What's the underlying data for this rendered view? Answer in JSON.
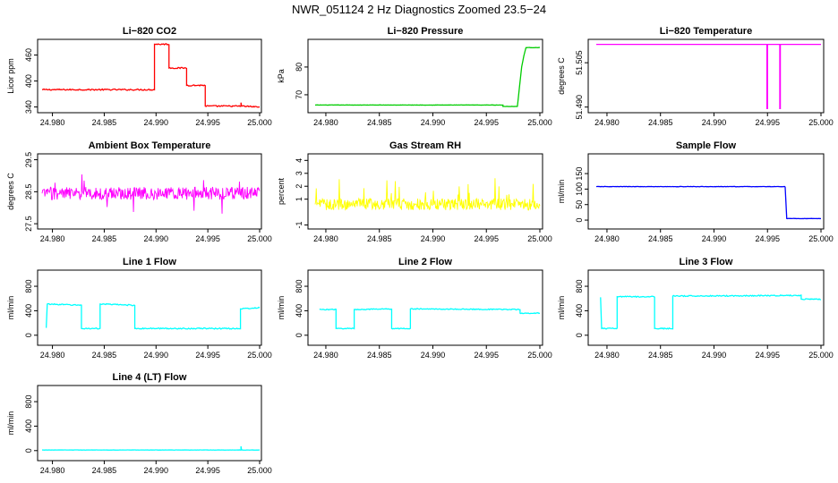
{
  "figure": {
    "suptitle": "NWR_051124  2 Hz Diagnostics Zoomed 23.5−24"
  },
  "chart_data": [
    {
      "type": "line",
      "title": "Li−820 CO2",
      "ylabel": "Licor ppm",
      "color": "#ff0000",
      "xlim": [
        24.979,
        25.0
      ],
      "ylim": [
        333,
        490
      ],
      "xticks": [
        "24.980",
        "24.985",
        "24.990",
        "24.995",
        "25.000"
      ],
      "yticks": [
        340,
        400,
        460
      ],
      "segments": [
        [
          24.979,
          380
        ],
        [
          24.98985,
          380
        ],
        [
          24.98985,
          485
        ],
        [
          24.99125,
          485
        ],
        [
          24.99125,
          430
        ],
        [
          24.99295,
          430
        ],
        [
          24.99295,
          390
        ],
        [
          24.99475,
          390
        ],
        [
          24.99475,
          342
        ],
        [
          24.9982,
          342
        ],
        [
          24.9982,
          350
        ],
        [
          24.99825,
          342
        ],
        [
          25.0,
          340
        ]
      ],
      "noise": 1.5
    },
    {
      "type": "line",
      "title": "Li−820 Pressure",
      "ylabel": "kPa",
      "color": "#00cc00",
      "xlim": [
        24.979,
        25.0
      ],
      "ylim": [
        64.5,
        89
      ],
      "xticks": [
        "24.980",
        "24.985",
        "24.990",
        "24.995",
        "25.000"
      ],
      "yticks": [
        70,
        80
      ],
      "segments": [
        [
          24.979,
          66.3
        ],
        [
          24.99655,
          66.3
        ],
        [
          24.99655,
          65.8
        ],
        [
          24.9979,
          65.8
        ],
        [
          24.9981,
          73
        ],
        [
          24.9983,
          80
        ],
        [
          24.9985,
          84
        ],
        [
          24.9987,
          87
        ],
        [
          25.0,
          87
        ]
      ],
      "noise": 0.05
    },
    {
      "type": "line",
      "title": "Li−820 Temperature",
      "ylabel": "degrees C",
      "color": "#ff00ff",
      "xlim": [
        24.979,
        25.0
      ],
      "ylim": [
        51.489,
        51.512
      ],
      "xticks": [
        "24.980",
        "24.985",
        "24.990",
        "24.995",
        "25.000"
      ],
      "yticks": [
        "51.490",
        "51.505"
      ],
      "segments": [
        [
          24.979,
          51.5112
        ],
        [
          24.99495,
          51.5112
        ],
        [
          24.99495,
          51.4895
        ],
        [
          24.995,
          51.4895
        ],
        [
          24.995,
          51.5112
        ],
        [
          24.99615,
          51.5112
        ],
        [
          24.99615,
          51.4895
        ],
        [
          24.9962,
          51.4895
        ],
        [
          24.9962,
          51.5112
        ],
        [
          24.99085,
          51.5112
        ],
        [
          25.0,
          51.5112
        ]
      ],
      "noise": 0
    },
    {
      "type": "line",
      "title": "Ambient Box Temperature",
      "ylabel": "degrees C",
      "color": "#ff00ff",
      "xlim": [
        24.979,
        25.0
      ],
      "ylim": [
        27.42,
        29.6
      ],
      "xticks": [
        "24.980",
        "24.985",
        "24.990",
        "24.995",
        "25.000"
      ],
      "yticks": [
        "27.5",
        "28.5",
        "29.5"
      ],
      "segments": [
        [
          24.979,
          28.45
        ],
        [
          25.0,
          28.45
        ]
      ],
      "noise": 0.2
    },
    {
      "type": "line",
      "title": "Gas Stream RH",
      "ylabel": "percent",
      "color": "#ffff00",
      "xlim": [
        24.979,
        25.0
      ],
      "ylim": [
        -1.1,
        4.3
      ],
      "xticks": [
        "24.980",
        "24.985",
        "24.990",
        "24.995",
        "25.000"
      ],
      "yticks": [
        -1,
        1,
        2,
        3,
        4
      ],
      "segments": [
        [
          24.979,
          0.6
        ],
        [
          25.0,
          0.6
        ]
      ],
      "noise": 0.45
    },
    {
      "type": "line",
      "title": "Sample Flow",
      "ylabel": "ml/min",
      "color": "#0000ff",
      "xlim": [
        24.979,
        25.0
      ],
      "ylim": [
        -20,
        205
      ],
      "xticks": [
        "24.980",
        "24.985",
        "24.990",
        "24.995",
        "25.000"
      ],
      "yticks": [
        0,
        50,
        100,
        150
      ],
      "segments": [
        [
          24.979,
          108
        ],
        [
          24.99665,
          108
        ],
        [
          24.99665,
          108
        ],
        [
          24.9968,
          5
        ],
        [
          25.0,
          5
        ]
      ],
      "noise": 0.6
    },
    {
      "type": "line",
      "title": "Line 1 Flow",
      "ylabel": "ml/min",
      "color": "#00ffff",
      "xlim": [
        24.979,
        25.0
      ],
      "ylim": [
        -120,
        1020
      ],
      "xticks": [
        "24.980",
        "24.985",
        "24.990",
        "24.995",
        "25.000"
      ],
      "yticks": [
        0,
        400,
        800
      ],
      "segments": [
        [
          24.9794,
          120
        ],
        [
          24.9795,
          510
        ],
        [
          24.9828,
          490
        ],
        [
          24.9828,
          110
        ],
        [
          24.9846,
          110
        ],
        [
          24.9846,
          510
        ],
        [
          24.98795,
          490
        ],
        [
          24.98795,
          110
        ],
        [
          24.99815,
          110
        ],
        [
          24.99815,
          430
        ],
        [
          25.0,
          450
        ]
      ],
      "noise": 9
    },
    {
      "type": "line",
      "title": "Line 2 Flow",
      "ylabel": "ml/min",
      "color": "#00ffff",
      "xlim": [
        24.979,
        25.0
      ],
      "ylim": [
        -120,
        1020
      ],
      "xticks": [
        "24.980",
        "24.985",
        "24.990",
        "24.995",
        "25.000"
      ],
      "yticks": [
        0,
        400,
        800
      ],
      "segments": [
        [
          24.9794,
          420
        ],
        [
          24.98095,
          420
        ],
        [
          24.98095,
          110
        ],
        [
          24.98265,
          110
        ],
        [
          24.98265,
          420
        ],
        [
          24.98615,
          430
        ],
        [
          24.98615,
          110
        ],
        [
          24.9879,
          110
        ],
        [
          24.9879,
          430
        ],
        [
          24.99815,
          420
        ],
        [
          24.99815,
          360
        ],
        [
          25.0,
          360
        ]
      ],
      "noise": 7
    },
    {
      "type": "line",
      "title": "Line 3 Flow",
      "ylabel": "ml/min",
      "color": "#00ffff",
      "xlim": [
        24.979,
        25.0
      ],
      "ylim": [
        -120,
        1020
      ],
      "xticks": [
        "24.980",
        "24.985",
        "24.990",
        "24.995",
        "25.000"
      ],
      "yticks": [
        0,
        400,
        800
      ],
      "segments": [
        [
          24.9794,
          620
        ],
        [
          24.9795,
          110
        ],
        [
          24.98095,
          110
        ],
        [
          24.98095,
          630
        ],
        [
          24.98445,
          630
        ],
        [
          24.98445,
          110
        ],
        [
          24.98615,
          110
        ],
        [
          24.98615,
          640
        ],
        [
          24.99815,
          650
        ],
        [
          24.99815,
          590
        ],
        [
          25.0,
          590
        ]
      ],
      "noise": 9
    },
    {
      "type": "line",
      "title": "Line 4 (LT) Flow",
      "ylabel": "ml/min",
      "color": "#00ffff",
      "xlim": [
        24.979,
        25.0
      ],
      "ylim": [
        -120,
        1020
      ],
      "xticks": [
        "24.980",
        "24.985",
        "24.990",
        "24.995",
        "25.000"
      ],
      "yticks": [
        0,
        400,
        800
      ],
      "segments": [
        [
          24.979,
          10
        ],
        [
          24.9982,
          10
        ],
        [
          24.9982,
          70
        ],
        [
          24.99825,
          10
        ],
        [
          25.0,
          10
        ]
      ],
      "noise": 2
    }
  ]
}
